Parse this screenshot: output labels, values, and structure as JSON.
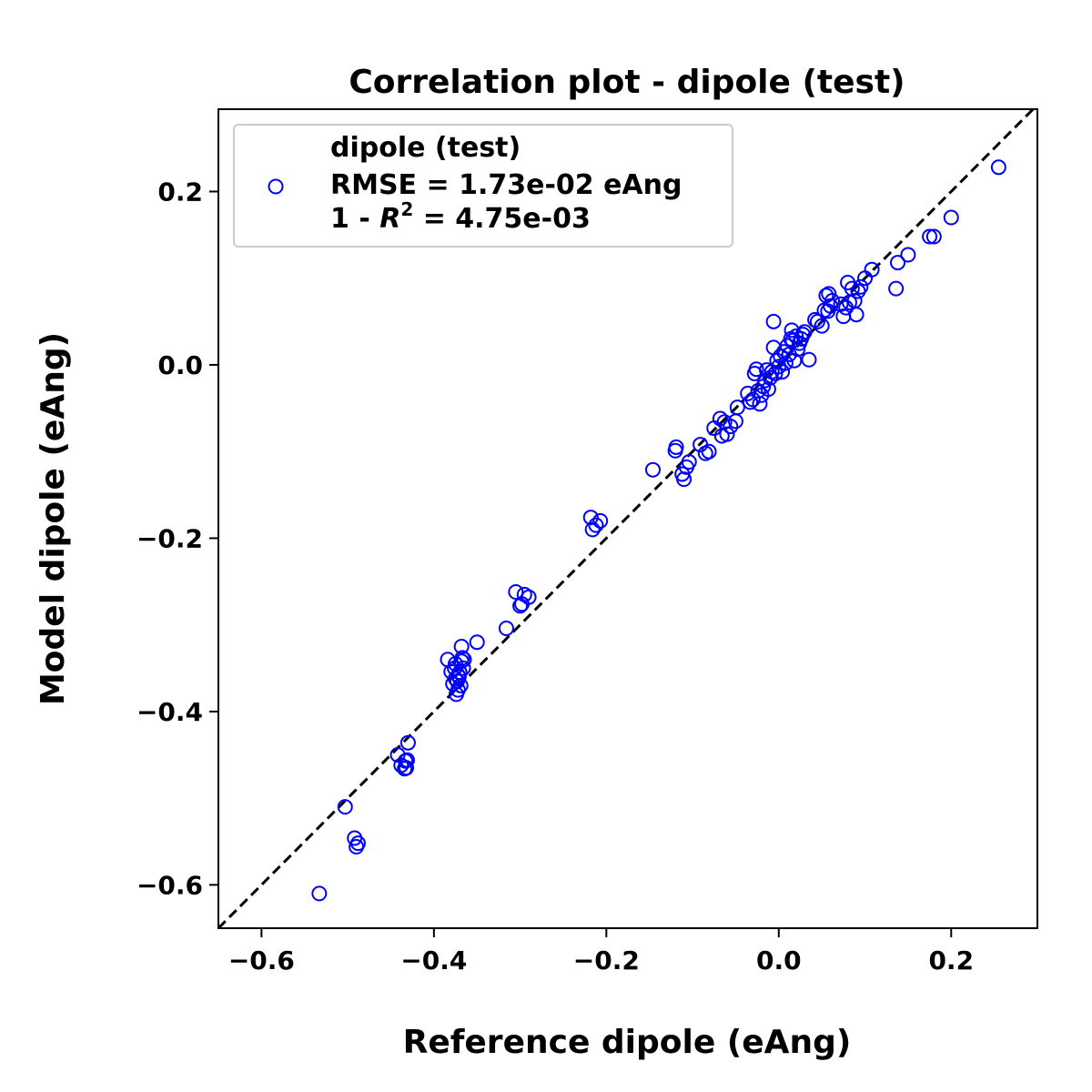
{
  "chart_data": {
    "type": "scatter",
    "title": "Correlation plot - dipole (test)",
    "xlabel": "Reference dipole (eAng)",
    "ylabel": "Model dipole (eAng)",
    "xlim": [
      -0.65,
      0.3
    ],
    "ylim": [
      -0.65,
      0.295
    ],
    "xticks": [
      -0.6,
      -0.4,
      -0.2,
      0.0,
      0.2
    ],
    "yticks": [
      -0.6,
      -0.4,
      -0.2,
      0.0,
      0.2
    ],
    "xtick_labels": [
      "−0.6",
      "−0.4",
      "−0.2",
      "0.0",
      "0.2"
    ],
    "ytick_labels": [
      "−0.6",
      "−0.4",
      "−0.2",
      "0.0",
      "0.2"
    ],
    "grid": false,
    "legend_position": "upper-left",
    "legend": {
      "series_label": "dipole (test)",
      "rmse_text": "RMSE = 1.73e-02 eAng",
      "r2_prefix": "1 - ",
      "r2_symbol": "R",
      "r2_exponent": "2",
      "r2_value": " = 4.75e-03"
    },
    "marker_color": "#0000ff",
    "identity_line": {
      "style": "dashed",
      "color": "#000000"
    },
    "series": [
      {
        "name": "dipole (test)",
        "x": [
          -0.533,
          -0.503,
          -0.492,
          -0.49,
          -0.488,
          -0.442,
          -0.438,
          -0.434,
          -0.433,
          -0.432,
          -0.431,
          -0.43,
          -0.384,
          -0.38,
          -0.378,
          -0.376,
          -0.375,
          -0.374,
          -0.373,
          -0.372,
          -0.371,
          -0.37,
          -0.369,
          -0.368,
          -0.367,
          -0.366,
          -0.365,
          -0.372,
          -0.375,
          -0.368,
          -0.35,
          -0.316,
          -0.305,
          -0.3,
          -0.298,
          -0.295,
          -0.29,
          -0.218,
          -0.216,
          -0.212,
          -0.207,
          -0.146,
          -0.12,
          -0.119,
          -0.112,
          -0.11,
          -0.107,
          -0.104,
          -0.091,
          -0.085,
          -0.081,
          -0.075,
          -0.068,
          -0.066,
          -0.063,
          -0.06,
          -0.056,
          -0.05,
          -0.048,
          -0.036,
          -0.033,
          -0.03,
          -0.028,
          -0.026,
          -0.024,
          -0.022,
          -0.02,
          -0.018,
          -0.016,
          -0.014,
          -0.012,
          -0.01,
          -0.008,
          -0.006,
          -0.004,
          -0.002,
          0.0,
          0.002,
          0.004,
          0.006,
          0.008,
          0.01,
          0.012,
          0.014,
          0.016,
          0.018,
          0.02,
          0.022,
          0.024,
          0.026,
          0.028,
          0.03,
          -0.006,
          0.015,
          0.035,
          0.042,
          0.045,
          0.05,
          0.053,
          0.055,
          0.057,
          0.058,
          0.06,
          0.062,
          0.072,
          0.075,
          0.078,
          0.08,
          0.082,
          0.085,
          0.088,
          0.09,
          0.092,
          0.095,
          0.1,
          0.108,
          0.136,
          0.138,
          0.15,
          0.175,
          0.18,
          0.2,
          0.255
        ],
        "y": [
          -0.61,
          -0.51,
          -0.546,
          -0.556,
          -0.552,
          -0.45,
          -0.462,
          -0.466,
          -0.457,
          -0.465,
          -0.456,
          -0.436,
          -0.34,
          -0.354,
          -0.368,
          -0.35,
          -0.345,
          -0.38,
          -0.365,
          -0.375,
          -0.36,
          -0.355,
          -0.37,
          -0.342,
          -0.338,
          -0.35,
          -0.34,
          -0.358,
          -0.362,
          -0.325,
          -0.32,
          -0.304,
          -0.262,
          -0.278,
          -0.276,
          -0.265,
          -0.268,
          -0.176,
          -0.19,
          -0.185,
          -0.18,
          -0.121,
          -0.099,
          -0.095,
          -0.126,
          -0.132,
          -0.118,
          -0.112,
          -0.092,
          -0.102,
          -0.1,
          -0.073,
          -0.062,
          -0.082,
          -0.066,
          -0.08,
          -0.071,
          -0.065,
          -0.049,
          -0.033,
          -0.043,
          -0.04,
          -0.01,
          -0.005,
          -0.03,
          -0.045,
          -0.035,
          -0.025,
          -0.018,
          -0.006,
          -0.028,
          -0.015,
          -0.008,
          0.02,
          -0.01,
          0.005,
          -0.002,
          0.01,
          -0.008,
          0.015,
          0.002,
          0.022,
          0.012,
          0.03,
          0.028,
          0.005,
          0.033,
          0.018,
          0.025,
          0.03,
          0.035,
          0.038,
          0.05,
          0.04,
          0.006,
          0.052,
          0.05,
          0.045,
          0.063,
          0.08,
          0.062,
          0.082,
          0.068,
          0.074,
          0.07,
          0.056,
          0.066,
          0.095,
          0.072,
          0.088,
          0.074,
          0.058,
          0.085,
          0.09,
          0.1,
          0.11,
          0.088,
          0.118,
          0.127,
          0.148,
          0.148,
          0.17,
          0.228
        ]
      }
    ]
  }
}
